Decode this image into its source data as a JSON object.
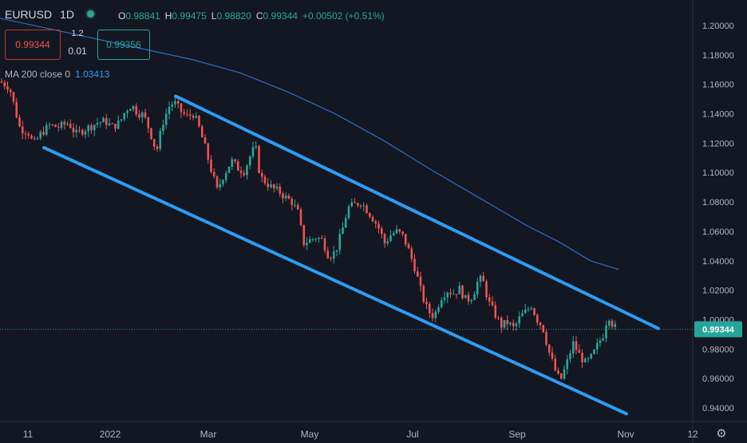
{
  "header": {
    "symbol": "EURUSD",
    "timeframe": "1D",
    "ohlc": {
      "o_label": "O",
      "o": "0.98841",
      "h_label": "H",
      "h": "0.99475",
      "l_label": "L",
      "l": "0.98820",
      "c_label": "C",
      "c": "0.99344",
      "change": "+0.00502 (+0.51%)"
    }
  },
  "trade": {
    "sell": "0.99344",
    "spread_top": "1.2",
    "spread_bottom": "0.01",
    "buy": "0.99356"
  },
  "ma": {
    "label": "MA 200 close 0",
    "value": "1.03413"
  },
  "colors": {
    "background": "#131722",
    "up": "#26a69a",
    "down": "#ef5350",
    "ma": "#2a6ec9",
    "channel": "#2a9df4"
  },
  "chart_data": {
    "type": "candlestick",
    "x_labels": [
      "11",
      "2022",
      "Mar",
      "May",
      "Jul",
      "Sep",
      "Nov",
      "12"
    ],
    "y_ticks": [
      "0.94000",
      "0.96000",
      "0.98000",
      "1.00000",
      "1.02000",
      "1.04000",
      "1.06000",
      "1.08000",
      "1.10000",
      "1.12000",
      "1.14000",
      "1.16000",
      "1.18000",
      "1.20000"
    ],
    "ylim": [
      0.93,
      1.21
    ],
    "last_price": "0.99344",
    "close_path": [
      [
        0,
        1.162
      ],
      [
        12,
        1.158
      ],
      [
        25,
        1.13
      ],
      [
        35,
        1.128
      ],
      [
        42,
        1.119
      ],
      [
        52,
        1.127
      ],
      [
        62,
        1.132
      ],
      [
        74,
        1.131
      ],
      [
        86,
        1.134
      ],
      [
        95,
        1.126
      ],
      [
        104,
        1.129
      ],
      [
        112,
        1.131
      ],
      [
        122,
        1.134
      ],
      [
        132,
        1.135
      ],
      [
        140,
        1.131
      ],
      [
        150,
        1.134
      ],
      [
        158,
        1.143
      ],
      [
        165,
        1.146
      ],
      [
        172,
        1.141
      ],
      [
        180,
        1.139
      ],
      [
        188,
        1.128
      ],
      [
        196,
        1.114
      ],
      [
        204,
        1.134
      ],
      [
        212,
        1.145
      ],
      [
        218,
        1.148
      ],
      [
        226,
        1.142
      ],
      [
        234,
        1.138
      ],
      [
        242,
        1.14
      ],
      [
        248,
        1.133
      ],
      [
        256,
        1.119
      ],
      [
        264,
        1.103
      ],
      [
        272,
        1.088
      ],
      [
        280,
        1.098
      ],
      [
        290,
        1.108
      ],
      [
        298,
        1.103
      ],
      [
        306,
        1.101
      ],
      [
        314,
        1.112
      ],
      [
        320,
        1.118
      ],
      [
        326,
        1.097
      ],
      [
        334,
        1.093
      ],
      [
        342,
        1.089
      ],
      [
        350,
        1.087
      ],
      [
        358,
        1.083
      ],
      [
        366,
        1.08
      ],
      [
        374,
        1.072
      ],
      [
        380,
        1.052
      ],
      [
        388,
        1.054
      ],
      [
        396,
        1.056
      ],
      [
        404,
        1.054
      ],
      [
        412,
        1.043
      ],
      [
        420,
        1.046
      ],
      [
        428,
        1.059
      ],
      [
        436,
        1.076
      ],
      [
        444,
        1.078
      ],
      [
        452,
        1.08
      ],
      [
        458,
        1.076
      ],
      [
        466,
        1.07
      ],
      [
        474,
        1.063
      ],
      [
        482,
        1.052
      ],
      [
        490,
        1.058
      ],
      [
        498,
        1.06
      ],
      [
        506,
        1.056
      ],
      [
        512,
        1.047
      ],
      [
        520,
        1.035
      ],
      [
        528,
        1.018
      ],
      [
        536,
        1.006
      ],
      [
        544,
        1.002
      ],
      [
        552,
        1.015
      ],
      [
        560,
        1.02
      ],
      [
        568,
        1.018
      ],
      [
        576,
        1.021
      ],
      [
        584,
        1.013
      ],
      [
        592,
        1.016
      ],
      [
        600,
        1.028
      ],
      [
        606,
        1.025
      ],
      [
        612,
        1.012
      ],
      [
        620,
        1.004
      ],
      [
        628,
        0.996
      ],
      [
        636,
        0.998
      ],
      [
        644,
        0.994
      ],
      [
        652,
        1.002
      ],
      [
        660,
        1.006
      ],
      [
        666,
        1.01
      ],
      [
        672,
        1.001
      ],
      [
        680,
        0.995
      ],
      [
        688,
        0.978
      ],
      [
        696,
        0.965
      ],
      [
        702,
        0.958
      ],
      [
        710,
        0.97
      ],
      [
        718,
        0.984
      ],
      [
        726,
        0.976
      ],
      [
        734,
        0.97
      ],
      [
        742,
        0.975
      ],
      [
        750,
        0.984
      ],
      [
        756,
        0.99
      ],
      [
        762,
        1.004
      ],
      [
        768,
        0.996
      ],
      [
        774,
        0.9934
      ]
    ],
    "ma200_path": [
      [
        0,
        1.205
      ],
      [
        60,
        1.198
      ],
      [
        120,
        1.191
      ],
      [
        180,
        1.184
      ],
      [
        240,
        1.177
      ],
      [
        300,
        1.168
      ],
      [
        360,
        1.155
      ],
      [
        420,
        1.14
      ],
      [
        480,
        1.122
      ],
      [
        540,
        1.102
      ],
      [
        600,
        1.083
      ],
      [
        660,
        1.064
      ],
      [
        700,
        1.053
      ],
      [
        740,
        1.04
      ],
      [
        775,
        1.03413
      ]
    ],
    "channel_upper": [
      [
        220,
        1.152
      ],
      [
        825,
        0.994
      ]
    ],
    "channel_lower": [
      [
        55,
        1.117
      ],
      [
        785,
        0.936
      ]
    ],
    "xlabel": "",
    "ylabel": ""
  }
}
